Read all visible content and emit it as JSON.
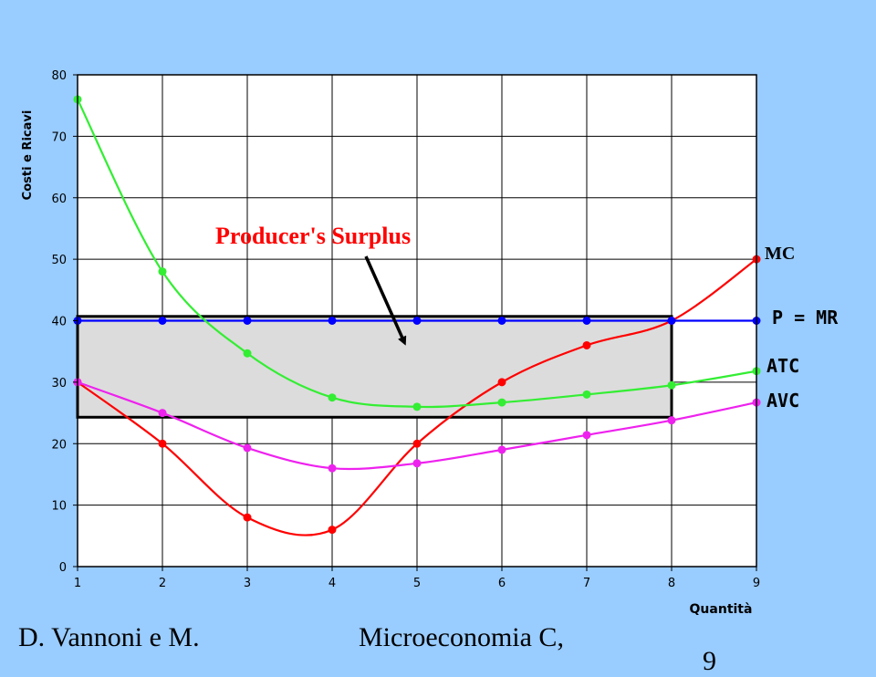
{
  "chart_data": {
    "type": "line",
    "title": "",
    "xlabel": "Quantità",
    "ylabel": "Costi e Ricavi",
    "x": [
      1,
      2,
      3,
      4,
      5,
      6,
      7,
      8,
      9
    ],
    "xlim": [
      1,
      9
    ],
    "ylim": [
      0,
      80
    ],
    "yticks": [
      0,
      10,
      20,
      30,
      40,
      50,
      60,
      70,
      80
    ],
    "grid": true,
    "series": [
      {
        "name": "MC",
        "color": "#ff0000",
        "values": [
          30,
          20,
          8,
          6,
          20,
          30,
          36,
          40,
          50
        ]
      },
      {
        "name": "P = MR",
        "color": "#0000ff",
        "values": [
          40,
          40,
          40,
          40,
          40,
          40,
          40,
          40,
          40
        ]
      },
      {
        "name": "ATC",
        "color": "#33ee33",
        "values": [
          76,
          48,
          34.7,
          27.5,
          26,
          26.7,
          28,
          29.5,
          31.8
        ]
      },
      {
        "name": "AVC",
        "color": "#ee22ee",
        "values": [
          30,
          25,
          19.3,
          16,
          16.8,
          19,
          21.4,
          23.8,
          26.7
        ]
      }
    ],
    "surplus_region": {
      "x_from": 1,
      "x_to": 8,
      "y_from": 24.3,
      "y_to": 40.7
    },
    "annotation": {
      "text": "Producer's Surplus",
      "color": "#ff0000",
      "points_to": {
        "x": 4.85,
        "y": 36.5
      }
    }
  },
  "footer": {
    "left": "D. Vannoni e M.",
    "center": "Microeconomia C,",
    "page": "9"
  }
}
